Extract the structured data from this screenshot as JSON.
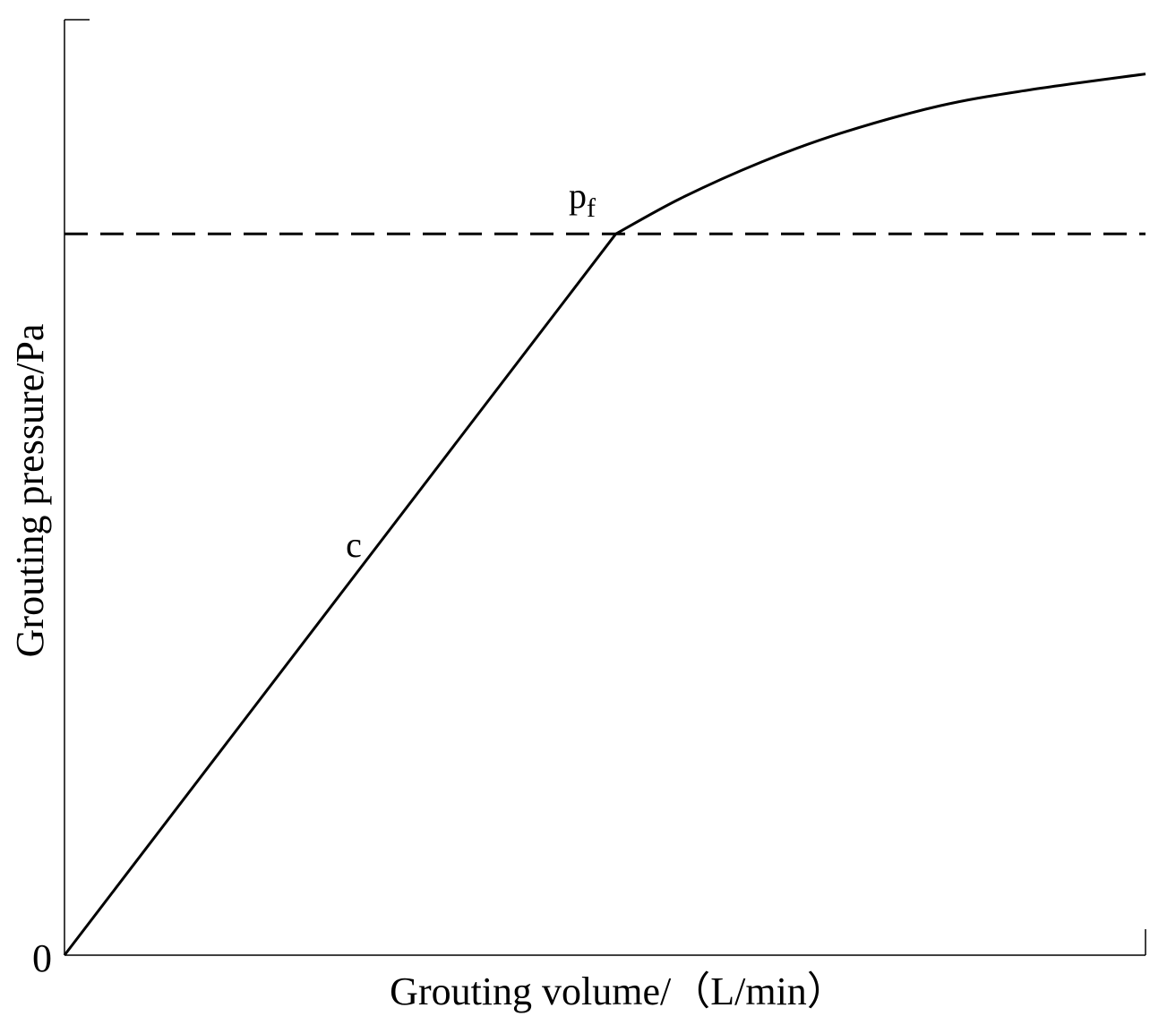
{
  "chart_data": {
    "type": "line",
    "x_label": "Grouting volume/（L/min）",
    "y_label": "Grouting pressure/Pa",
    "x": [
      0,
      51.0,
      57.0,
      64.5,
      71.9,
      81.0,
      89.3,
      100
    ],
    "series": [
      {
        "color": "#000000",
        "values": [
          0,
          77.1,
          80.9,
          84.8,
          87.9,
          90.8,
          92.5,
          94.2
        ]
      }
    ],
    "hlines": [
      77.1
    ],
    "annotations": [
      {
        "text": "c"
      },
      {
        "text": "p",
        "subscript": "f"
      }
    ],
    "xlim": [
      0,
      100
    ],
    "ylim": [
      0,
      100
    ],
    "yticks": [
      0
    ],
    "grid": false
  }
}
